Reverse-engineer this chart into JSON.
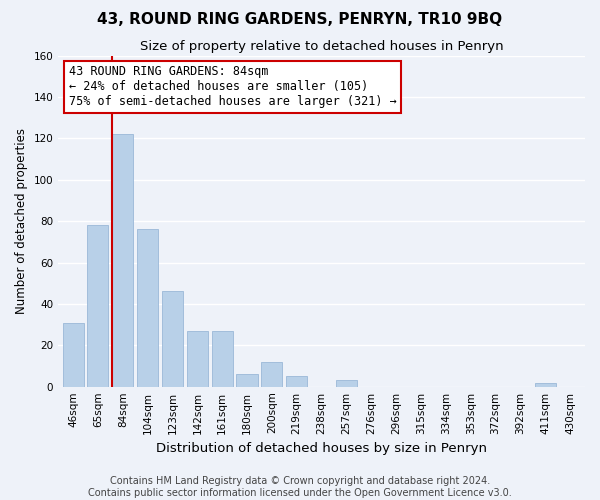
{
  "title": "43, ROUND RING GARDENS, PENRYN, TR10 9BQ",
  "subtitle": "Size of property relative to detached houses in Penryn",
  "xlabel": "Distribution of detached houses by size in Penryn",
  "ylabel": "Number of detached properties",
  "bar_labels": [
    "46sqm",
    "65sqm",
    "84sqm",
    "104sqm",
    "123sqm",
    "142sqm",
    "161sqm",
    "180sqm",
    "200sqm",
    "219sqm",
    "238sqm",
    "257sqm",
    "276sqm",
    "296sqm",
    "315sqm",
    "334sqm",
    "353sqm",
    "372sqm",
    "392sqm",
    "411sqm",
    "430sqm"
  ],
  "bar_values": [
    31,
    78,
    122,
    76,
    46,
    27,
    27,
    6,
    12,
    5,
    0,
    3,
    0,
    0,
    0,
    0,
    0,
    0,
    0,
    2,
    0
  ],
  "bar_color": "#b8d0e8",
  "bar_edge_color": "#9ab8d8",
  "vline_color": "#cc0000",
  "vline_x_index": 2,
  "ylim": [
    0,
    160
  ],
  "yticks": [
    0,
    20,
    40,
    60,
    80,
    100,
    120,
    140,
    160
  ],
  "annotation_lines": [
    "43 ROUND RING GARDENS: 84sqm",
    "← 24% of detached houses are smaller (105)",
    "75% of semi-detached houses are larger (321) →"
  ],
  "annotation_box_facecolor": "#ffffff",
  "annotation_box_edgecolor": "#cc0000",
  "footer_line1": "Contains HM Land Registry data © Crown copyright and database right 2024.",
  "footer_line2": "Contains public sector information licensed under the Open Government Licence v3.0.",
  "background_color": "#eef2f9",
  "grid_color": "#ffffff",
  "title_fontsize": 11,
  "subtitle_fontsize": 9.5,
  "xlabel_fontsize": 9.5,
  "ylabel_fontsize": 8.5,
  "tick_fontsize": 7.5,
  "annotation_fontsize": 8.5,
  "footer_fontsize": 7
}
